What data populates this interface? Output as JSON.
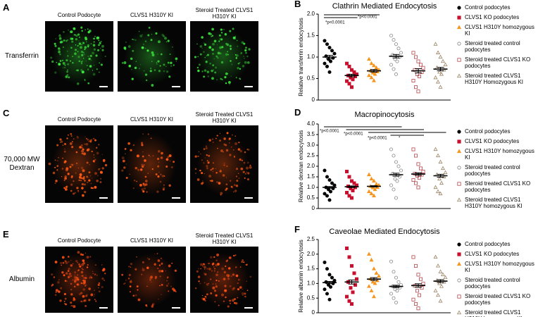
{
  "panels": [
    {
      "letter": "A",
      "row_label": "Transferrin",
      "captions": [
        "Control Podocyte",
        "CLVS1 H310Y KI",
        "Steroid Treated CLVS1 H310Y KI"
      ]
    },
    {
      "letter": "C",
      "row_label": "70,000 MW Dextran",
      "captions": [
        "Control Podocyte",
        "CLVS1 H310Y KI",
        "Steroid Treated CLVS1 H310Y KI"
      ]
    },
    {
      "letter": "E",
      "row_label": "Albumin",
      "captions": [
        "Control Podocyte",
        "CLVS1 H310Y KI",
        "Steroid Treated CLVS1 H310Y KI"
      ]
    }
  ],
  "chart_data": [
    {
      "type": "dot",
      "panel": "B",
      "title": "Clathrin Mediated Endocytosis",
      "y_label": "Relative transferrin endocytosis",
      "ylim": [
        0,
        2
      ],
      "yticks": [
        0,
        0.5,
        {
          "value": 1,
          "label": "1.0"
        },
        1.5,
        {
          "value": 2,
          "label": "2.0"
        }
      ],
      "annotations": [
        "*p<0.0001",
        "*p<0.0001"
      ],
      "series": [
        {
          "name": "Control podocytes",
          "color": "#000000",
          "marker": "circle",
          "filled": true,
          "values": [
            1.38,
            1.3,
            1.22,
            1.15,
            1.08,
            1.02,
            0.98,
            0.95,
            0.9,
            0.85,
            0.78,
            0.65
          ],
          "mean": 1.0,
          "sem": 0.04
        },
        {
          "name": "CLVS1 KO podocytes",
          "color": "#c8102e",
          "marker": "square",
          "filled": true,
          "values": [
            0.85,
            0.78,
            0.7,
            0.65,
            0.6,
            0.57,
            0.55,
            0.52,
            0.48,
            0.44,
            0.38,
            0.3
          ],
          "mean": 0.57,
          "sem": 0.03
        },
        {
          "name": "CLVS1 H310Y homozygous KI",
          "color": "#f7941d",
          "marker": "triangle",
          "filled": true,
          "values": [
            0.95,
            0.85,
            0.8,
            0.75,
            0.7,
            0.68,
            0.66,
            0.63,
            0.6,
            0.57,
            0.52,
            0.45
          ],
          "mean": 0.68,
          "sem": 0.03
        },
        {
          "name": "Steroid treated control podocytes",
          "color": "#888888",
          "marker": "circle",
          "filled": false,
          "values": [
            1.5,
            1.4,
            1.3,
            1.2,
            1.1,
            1.05,
            1.0,
            0.95,
            0.9,
            0.82,
            0.72,
            0.6
          ],
          "mean": 1.02,
          "sem": 0.04
        },
        {
          "name": "Steroid treated CLVS1 KO podocytes",
          "color": "#b5464b",
          "marker": "square",
          "filled": false,
          "values": [
            1.1,
            1.0,
            0.9,
            0.82,
            0.75,
            0.7,
            0.65,
            0.6,
            0.55,
            0.45,
            0.3,
            0.2
          ],
          "mean": 0.68,
          "sem": 0.05
        },
        {
          "name": "Steroid treated CLVS1 H310Y Homozygous KI",
          "color": "#9c8466",
          "marker": "triangle",
          "filled": false,
          "values": [
            1.3,
            1.1,
            1.0,
            0.9,
            0.82,
            0.75,
            0.7,
            0.65,
            0.6,
            0.52,
            0.42,
            0.3
          ],
          "mean": 0.72,
          "sem": 0.04
        }
      ]
    },
    {
      "type": "dot",
      "panel": "D",
      "title": "Macropinocytosis",
      "y_label": "Relative dextran endocytosis",
      "ylim": [
        0,
        4
      ],
      "yticks": [
        0,
        0.5,
        {
          "value": 1,
          "label": "1.0"
        },
        1.5,
        {
          "value": 2,
          "label": "2.0"
        },
        2.5,
        {
          "value": 3,
          "label": "3.0"
        },
        3.5,
        {
          "value": 4,
          "label": "4.0"
        }
      ],
      "annotations": [
        "*p<0.0001",
        "*p<0.0001",
        "*p<0.0001",
        "*"
      ],
      "series": [
        {
          "name": "Control podocytes",
          "color": "#000000",
          "marker": "circle",
          "filled": true,
          "values": [
            1.8,
            1.5,
            1.35,
            1.2,
            1.1,
            1.0,
            0.95,
            0.9,
            0.8,
            0.7,
            0.6,
            0.4
          ],
          "mean": 1.0,
          "sem": 0.04
        },
        {
          "name": "CLVS1 KO podocytes",
          "color": "#c8102e",
          "marker": "square",
          "filled": true,
          "values": [
            1.75,
            1.5,
            1.3,
            1.2,
            1.1,
            1.05,
            1.0,
            0.95,
            0.85,
            0.75,
            0.6,
            0.5
          ],
          "mean": 1.03,
          "sem": 0.04
        },
        {
          "name": "CLVS1 H310Y homozygous KI",
          "color": "#f7941d",
          "marker": "triangle",
          "filled": true,
          "values": [
            1.6,
            1.4,
            1.3,
            1.15,
            1.1,
            1.05,
            1.0,
            0.98,
            0.9,
            0.8,
            0.7,
            0.6
          ],
          "mean": 1.05,
          "sem": 0.03
        },
        {
          "name": "Steroid treated control podocytes",
          "color": "#888888",
          "marker": "circle",
          "filled": false,
          "values": [
            2.8,
            2.5,
            2.2,
            2.0,
            1.8,
            1.65,
            1.5,
            1.4,
            1.3,
            1.1,
            0.9,
            0.5
          ],
          "mean": 1.6,
          "sem": 0.07
        },
        {
          "name": "Steroid treated CLVS1 KO podocytes",
          "color": "#b5464b",
          "marker": "square",
          "filled": false,
          "values": [
            2.8,
            2.5,
            2.1,
            1.9,
            1.75,
            1.65,
            1.6,
            1.55,
            1.45,
            1.35,
            1.2,
            1.0
          ],
          "mean": 1.63,
          "sem": 0.06
        },
        {
          "name": "Steroid treated CLVS1 H310Y homozygous KI",
          "color": "#9c8466",
          "marker": "triangle",
          "filled": false,
          "values": [
            2.8,
            2.5,
            2.2,
            1.9,
            1.7,
            1.6,
            1.5,
            1.4,
            1.2,
            1.0,
            0.8,
            0.7
          ],
          "mean": 1.55,
          "sem": 0.07
        }
      ]
    },
    {
      "type": "dot",
      "panel": "F",
      "title": "Caveolae Mediated Endocytosis",
      "y_label": "Relative albumin endocytosis",
      "ylim": [
        0,
        2.5
      ],
      "yticks": [
        0,
        0.5,
        {
          "value": 1,
          "label": "1.0"
        },
        1.5,
        {
          "value": 2,
          "label": "2.0"
        },
        2.5
      ],
      "series": [
        {
          "name": "Control podocytes",
          "color": "#000000",
          "marker": "circle",
          "filled": true,
          "values": [
            1.72,
            1.5,
            1.3,
            1.2,
            1.1,
            1.05,
            1.0,
            0.95,
            0.88,
            0.8,
            0.65,
            0.45
          ],
          "mean": 1.03,
          "sem": 0.04
        },
        {
          "name": "CLVS1 KO podocytes",
          "color": "#c8102e",
          "marker": "square",
          "filled": true,
          "values": [
            2.2,
            1.9,
            1.6,
            1.35,
            1.15,
            1.05,
            0.95,
            0.85,
            0.7,
            0.55,
            0.4,
            0.3
          ],
          "mean": 1.05,
          "sem": 0.07
        },
        {
          "name": "CLVS1 H310Y homozygous KI",
          "color": "#f7941d",
          "marker": "triangle",
          "filled": true,
          "values": [
            2.0,
            1.8,
            1.5,
            1.35,
            1.25,
            1.15,
            1.1,
            1.05,
            1.0,
            0.9,
            0.75,
            0.55
          ],
          "mean": 1.15,
          "sem": 0.05
        },
        {
          "name": "Steroid treated control podocytes",
          "color": "#888888",
          "marker": "circle",
          "filled": false,
          "values": [
            1.75,
            1.4,
            1.2,
            1.05,
            0.95,
            0.9,
            0.85,
            0.8,
            0.75,
            0.65,
            0.5,
            0.35
          ],
          "mean": 0.9,
          "sem": 0.04
        },
        {
          "name": "Steroid treated CLVS1 KO podocytes",
          "color": "#b5464b",
          "marker": "square",
          "filled": false,
          "values": [
            1.9,
            1.6,
            1.3,
            1.15,
            1.0,
            0.92,
            0.85,
            0.75,
            0.6,
            0.45,
            0.3,
            0.15
          ],
          "mean": 0.93,
          "sem": 0.06
        },
        {
          "name": "Steroid treated CLVS1 H310Y homozygous KI",
          "color": "#9c8466",
          "marker": "triangle",
          "filled": false,
          "values": [
            1.9,
            1.6,
            1.4,
            1.3,
            1.2,
            1.1,
            1.05,
            1.0,
            0.9,
            0.75,
            0.6,
            0.4
          ],
          "mean": 1.08,
          "sem": 0.05
        }
      ]
    }
  ]
}
